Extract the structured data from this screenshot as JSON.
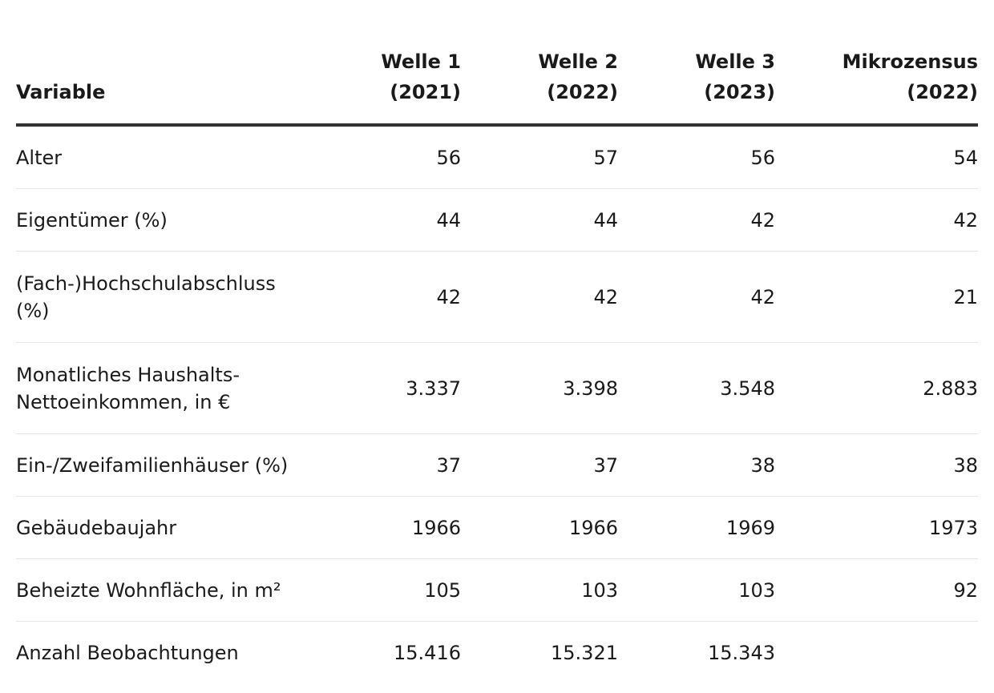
{
  "table": {
    "headers": [
      "Variable",
      "Welle 1\n(2021)",
      "Welle 2\n(2022)",
      "Welle 3\n(2023)",
      "Mikrozensus\n(2022)"
    ],
    "rows": [
      {
        "label": "Alter",
        "w1": "56",
        "w2": "57",
        "w3": "56",
        "mz": "54"
      },
      {
        "label": "Eigentümer (%)",
        "w1": "44",
        "w2": "44",
        "w3": "42",
        "mz": "42"
      },
      {
        "label": "(Fach-)Hochschulabschluss\n(%)",
        "w1": "42",
        "w2": "42",
        "w3": "42",
        "mz": "21"
      },
      {
        "label": "Monatliches Haushalts-\nNettoeinkommen, in €",
        "w1": "3.337",
        "w2": "3.398",
        "w3": "3.548",
        "mz": "2.883"
      },
      {
        "label": "Ein-/Zweifamilienhäuser (%)",
        "w1": "37",
        "w2": "37",
        "w3": "38",
        "mz": "38"
      },
      {
        "label": "Gebäudebaujahr",
        "w1": "1966",
        "w2": "1966",
        "w3": "1969",
        "mz": "1973"
      },
      {
        "label": "Beheizte Wohnfläche, in m²",
        "w1": "105",
        "w2": "103",
        "w3": "103",
        "mz": "92"
      },
      {
        "label": "Anzahl Beobachtungen",
        "w1": "15.416",
        "w2": "15.321",
        "w3": "15.343",
        "mz": ""
      }
    ]
  }
}
